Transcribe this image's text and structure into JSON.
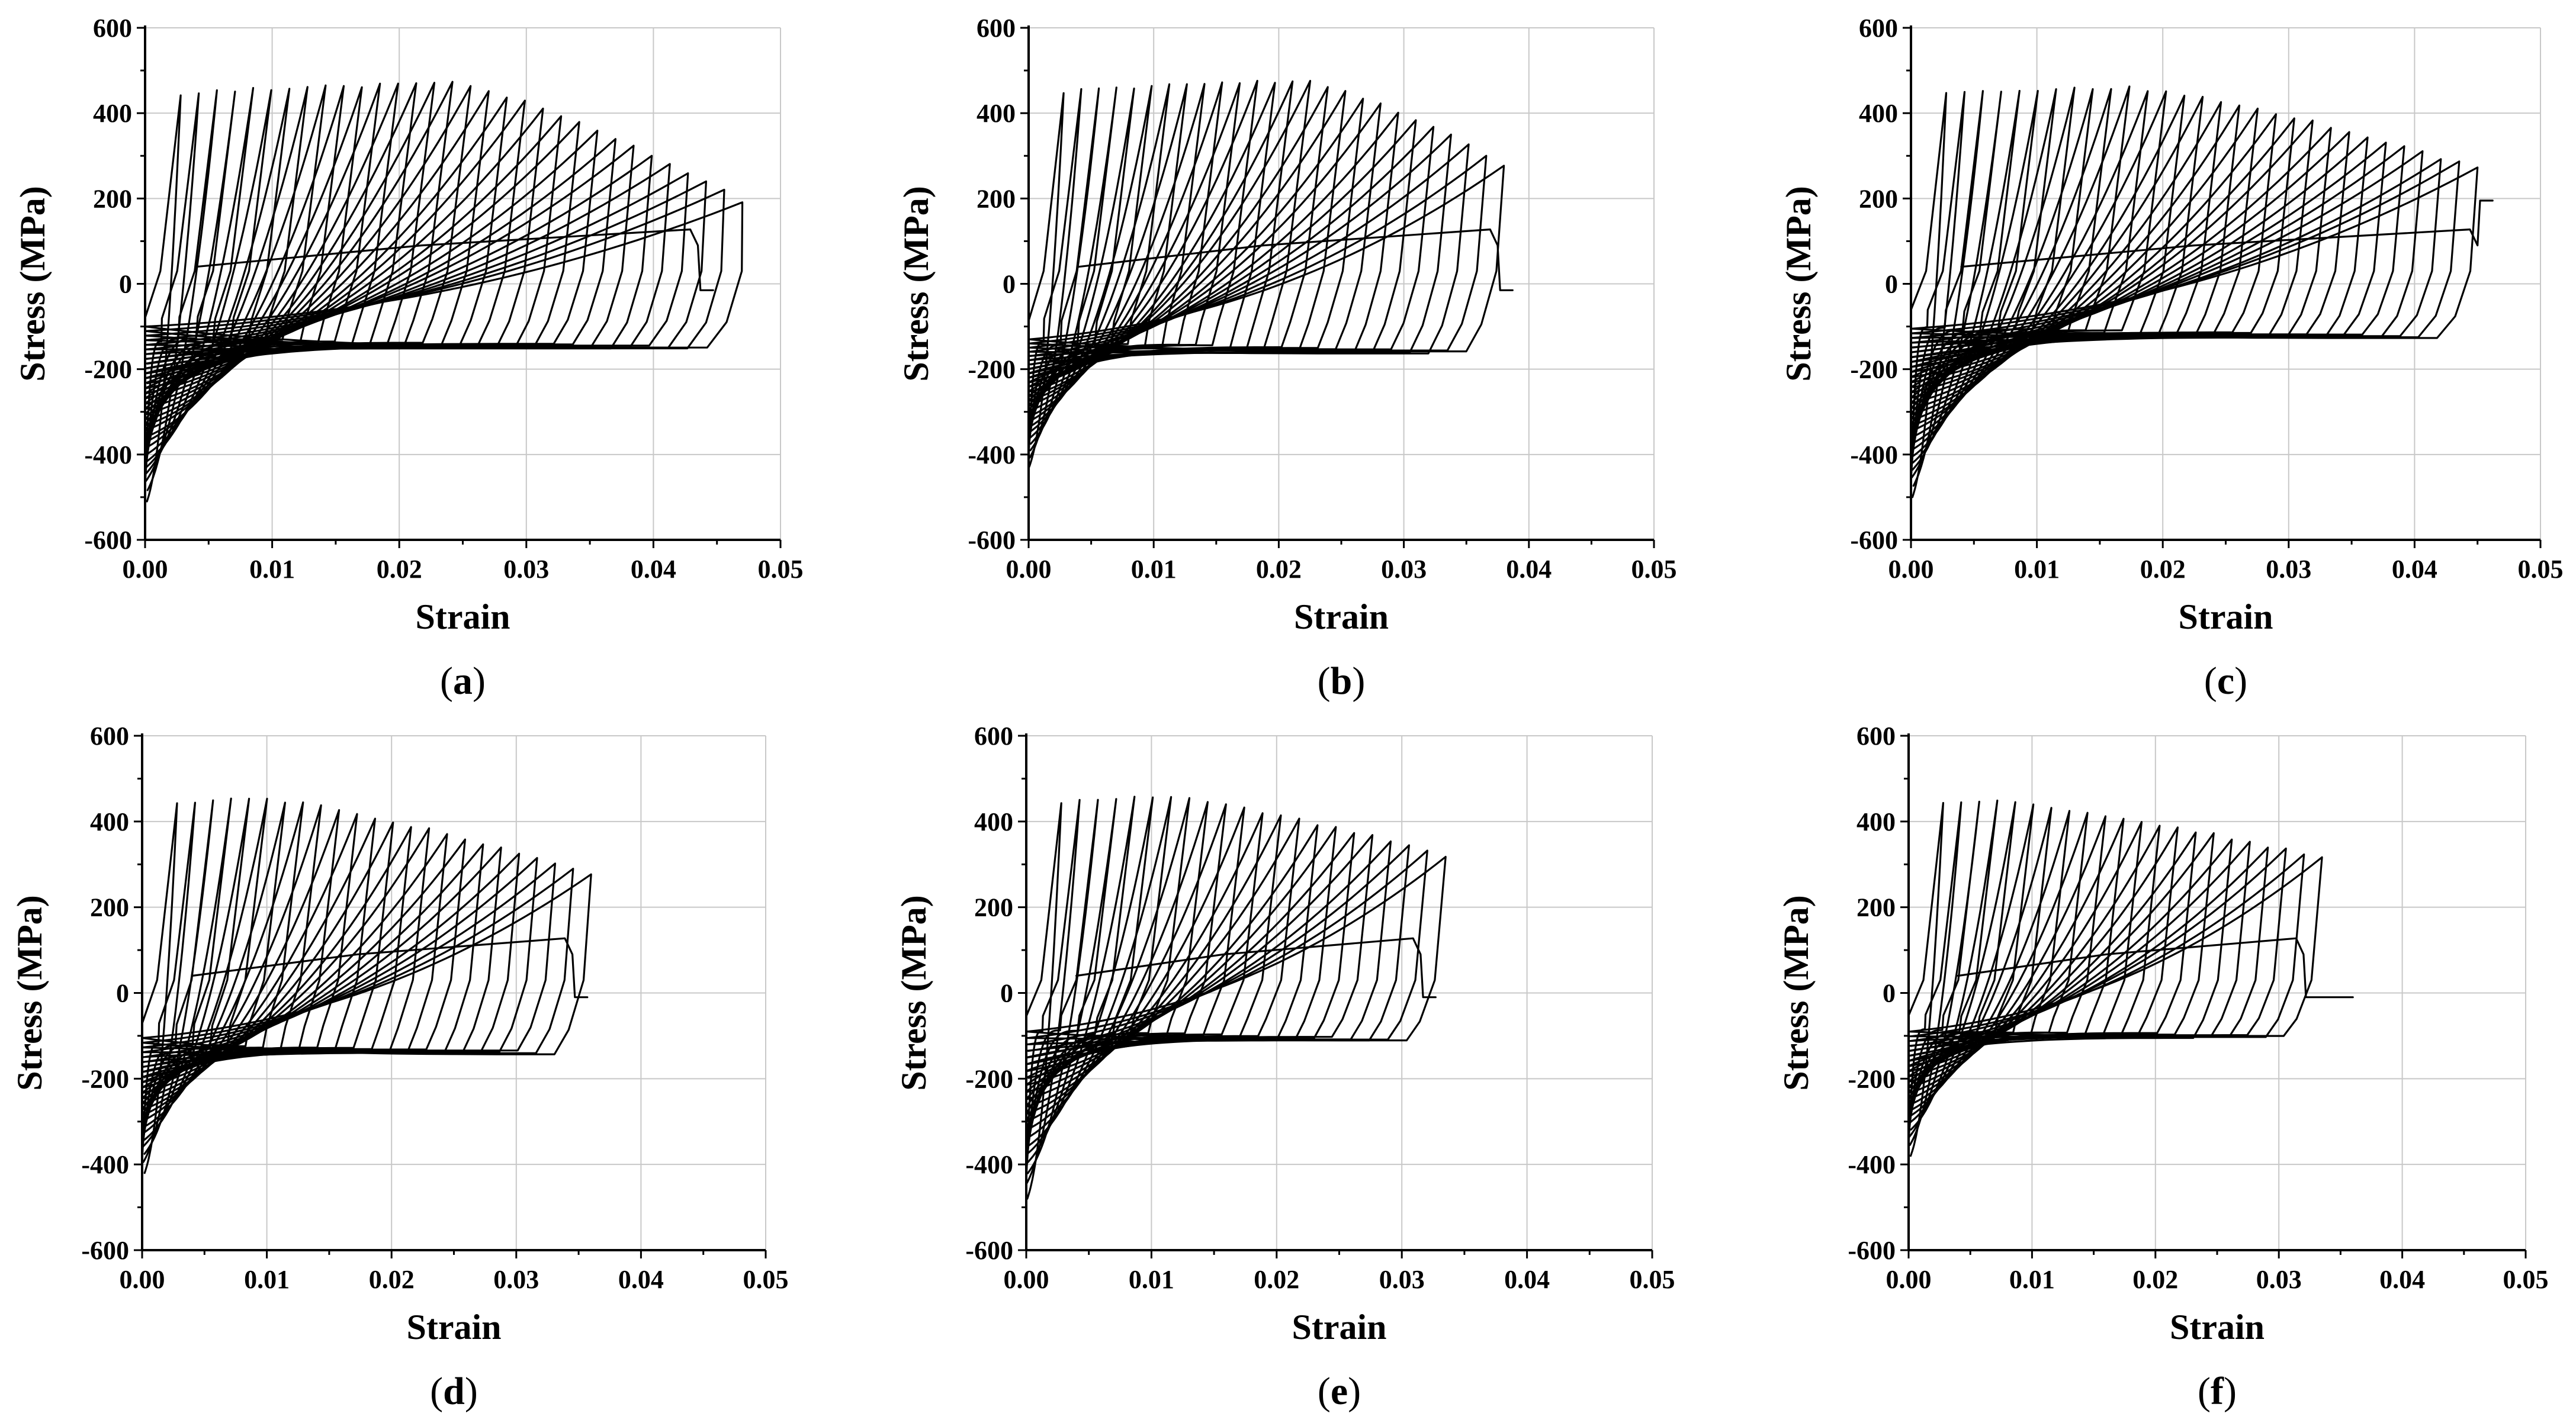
{
  "figure": {
    "panel_count": 6,
    "layout": "2 rows x 3 columns"
  },
  "chart_data": [
    {
      "panel": "a",
      "type": "line",
      "title": "",
      "xlabel": "Strain",
      "ylabel": "Stress (MPa)",
      "xlim": [
        0.0,
        0.05
      ],
      "ylim": [
        -600,
        600
      ],
      "xticks": [
        "0.00",
        "0.01",
        "0.02",
        "0.03",
        "0.04",
        "0.05"
      ],
      "yticks": [
        "600",
        "400",
        "200",
        "0",
        "-200",
        "-400",
        "-600"
      ],
      "grid": true,
      "cycles": 32,
      "peak_tension_stress": 470,
      "peak_tension_strain": 0.024,
      "first_tension_stress": 440,
      "max_strain": 0.047,
      "final_tension_stress": 195,
      "compression_envelope_start": -510,
      "compression_envelope_end": -100,
      "compression_plateau_first": -130,
      "fracture_strain": 0.0435,
      "fracture_drop_to": -15
    },
    {
      "panel": "b",
      "type": "line",
      "title": "",
      "xlabel": "Strain",
      "ylabel": "Stress (MPa)",
      "xlim": [
        0.0,
        0.05
      ],
      "ylim": [
        -600,
        600
      ],
      "xticks": [
        "0.00",
        "0.01",
        "0.02",
        "0.03",
        "0.04",
        "0.05"
      ],
      "yticks": [
        "600",
        "400",
        "200",
        "0",
        "-200",
        "-400",
        "-600"
      ],
      "grid": true,
      "cycles": 26,
      "peak_tension_stress": 475,
      "peak_tension_strain": 0.022,
      "first_tension_stress": 445,
      "max_strain": 0.038,
      "final_tension_stress": 280,
      "compression_envelope_start": -430,
      "compression_envelope_end": -130,
      "compression_plateau_first": -140,
      "fracture_strain": 0.0375,
      "fracture_drop_to": -15
    },
    {
      "panel": "c",
      "type": "line",
      "title": "",
      "xlabel": "Strain",
      "ylabel": "Stress (MPa)",
      "xlim": [
        0.0,
        0.05
      ],
      "ylim": [
        -600,
        600
      ],
      "xticks": [
        "0.00",
        "0.01",
        "0.02",
        "0.03",
        "0.04",
        "0.05"
      ],
      "yticks": [
        "600",
        "400",
        "200",
        "0",
        "-200",
        "-400",
        "-600"
      ],
      "grid": true,
      "cycles": 30,
      "peak_tension_stress": 460,
      "peak_tension_strain": 0.017,
      "first_tension_stress": 445,
      "max_strain": 0.045,
      "final_tension_stress": 270,
      "compression_envelope_start": -500,
      "compression_envelope_end": -105,
      "compression_plateau_first": -105,
      "fracture_strain": 0.045,
      "fracture_drop_to": 195
    },
    {
      "panel": "d",
      "type": "line",
      "title": "",
      "xlabel": "Strain",
      "ylabel": "Stress (MPa)",
      "xlim": [
        0.0,
        0.05
      ],
      "ylim": [
        -600,
        600
      ],
      "xticks": [
        "0.00",
        "0.01",
        "0.02",
        "0.03",
        "0.04",
        "0.05"
      ],
      "yticks": [
        "600",
        "400",
        "200",
        "0",
        "-200",
        "-400",
        "-600"
      ],
      "grid": true,
      "cycles": 24,
      "peak_tension_stress": 455,
      "peak_tension_strain": 0.009,
      "first_tension_stress": 440,
      "max_strain": 0.036,
      "final_tension_stress": 275,
      "compression_envelope_start": -420,
      "compression_envelope_end": -105,
      "compression_plateau_first": -120,
      "fracture_strain": 0.0345,
      "fracture_drop_to": -10
    },
    {
      "panel": "e",
      "type": "line",
      "title": "",
      "xlabel": "Strain",
      "ylabel": "Stress (MPa)",
      "xlim": [
        0.0,
        0.05
      ],
      "ylim": [
        -600,
        600
      ],
      "xticks": [
        "0.00",
        "0.01",
        "0.02",
        "0.03",
        "0.04",
        "0.05"
      ],
      "yticks": [
        "600",
        "400",
        "200",
        "0",
        "-200",
        "-400",
        "-600"
      ],
      "grid": true,
      "cycles": 22,
      "peak_tension_stress": 460,
      "peak_tension_strain": 0.01,
      "first_tension_stress": 440,
      "max_strain": 0.0335,
      "final_tension_stress": 320,
      "compression_envelope_start": -480,
      "compression_envelope_end": -90,
      "compression_plateau_first": -90,
      "fracture_strain": 0.0315,
      "fracture_drop_to": -10
    },
    {
      "panel": "f",
      "type": "line",
      "title": "",
      "xlabel": "Strain",
      "ylabel": "Stress (MPa)",
      "xlim": [
        0.0,
        0.05
      ],
      "ylim": [
        -600,
        600
      ],
      "xticks": [
        "0.00",
        "0.01",
        "0.02",
        "0.03",
        "0.04",
        "0.05"
      ],
      "yticks": [
        "600",
        "400",
        "200",
        "0",
        "-200",
        "-400",
        "-600"
      ],
      "grid": true,
      "cycles": 22,
      "peak_tension_stress": 450,
      "peak_tension_strain": 0.006,
      "first_tension_stress": 440,
      "max_strain": 0.0335,
      "final_tension_stress": 315,
      "compression_envelope_start": -380,
      "compression_envelope_end": -90,
      "compression_plateau_first": -85,
      "fracture_strain": 0.032,
      "fracture_drop_to": -10,
      "post_fracture_tail_end": 0.036
    }
  ]
}
